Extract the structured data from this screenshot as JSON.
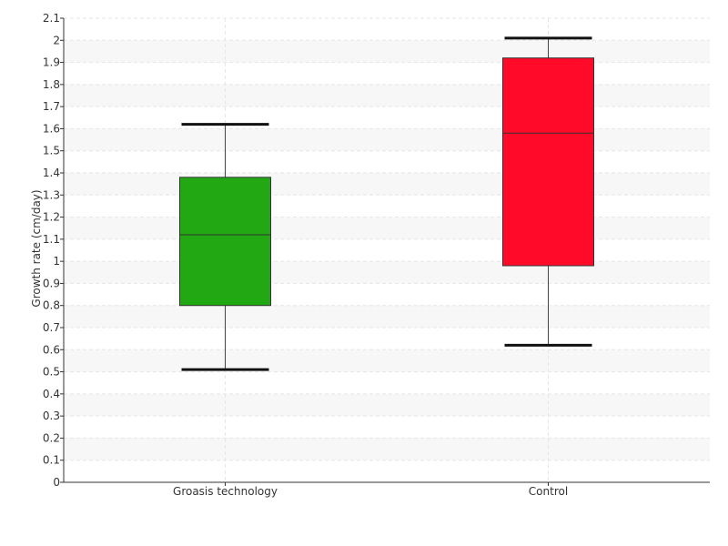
{
  "chart_data": {
    "type": "box",
    "ylabel": "Growth rate (cm/day)",
    "ylim": [
      0,
      2.1
    ],
    "ytick_step": 0.1,
    "categories": [
      "Groasis technology",
      "Control"
    ],
    "boxes": [
      {
        "name": "Groasis technology",
        "whisker_low": 0.51,
        "q1": 0.8,
        "median": 1.12,
        "q3": 1.38,
        "whisker_high": 1.62,
        "color": "#22a812"
      },
      {
        "name": "Control",
        "whisker_low": 0.62,
        "q1": 0.98,
        "median": 1.58,
        "q3": 1.92,
        "whisker_high": 2.01,
        "color": "#ff0a28"
      }
    ],
    "grid": true,
    "alternating_bands": true
  }
}
